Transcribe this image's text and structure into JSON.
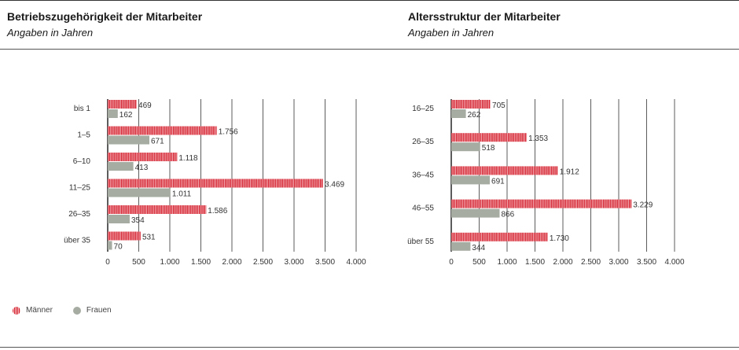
{
  "colors": {
    "men": "#d4202d",
    "men_light": "#f6c2c6",
    "women": "#a6aca2",
    "grid": "#333333"
  },
  "legend": {
    "men": "Männer",
    "women": "Frauen"
  },
  "chart_data": [
    {
      "type": "bar",
      "orientation": "horizontal",
      "title": "Betriebszugehörigkeit der Mitarbeiter",
      "subtitle": "Angaben in Jahren",
      "categories": [
        "bis 1",
        "1–5",
        "6–10",
        "11–25",
        "26–35",
        "über 35"
      ],
      "series": [
        {
          "name": "Männer",
          "values": [
            469,
            1756,
            1118,
            3469,
            1586,
            531
          ],
          "labels": [
            "469",
            "1.756",
            "1.118",
            "3.469",
            "1.586",
            "531"
          ]
        },
        {
          "name": "Frauen",
          "values": [
            162,
            671,
            413,
            1011,
            354,
            70
          ],
          "labels": [
            "162",
            "671",
            "413",
            "1.011",
            "354",
            "70"
          ]
        }
      ],
      "xlim": [
        0,
        4000
      ],
      "ticks": [
        0,
        500,
        1000,
        1500,
        2000,
        2500,
        3000,
        3500,
        4000
      ],
      "tick_labels": [
        "0",
        "500",
        "1.000",
        "1.500",
        "2.000",
        "2.500",
        "3.000",
        "3.500",
        "4.000"
      ],
      "grid": true,
      "legend_position": "bottom-left"
    },
    {
      "type": "bar",
      "orientation": "horizontal",
      "title": "Altersstruktur der Mitarbeiter",
      "subtitle": "Angaben in Jahren",
      "categories": [
        "16–25",
        "26–35",
        "36–45",
        "46–55",
        "über 55"
      ],
      "series": [
        {
          "name": "Männer",
          "values": [
            705,
            1353,
            1912,
            3229,
            1730
          ],
          "labels": [
            "705",
            "1.353",
            "1.912",
            "3.229",
            "1.730"
          ]
        },
        {
          "name": "Frauen",
          "values": [
            262,
            518,
            691,
            866,
            344
          ],
          "labels": [
            "262",
            "518",
            "691",
            "866",
            "344"
          ]
        }
      ],
      "xlim": [
        0,
        4000
      ],
      "ticks": [
        0,
        500,
        1000,
        1500,
        2000,
        2500,
        3000,
        3500,
        4000
      ],
      "tick_labels": [
        "0",
        "500",
        "1.000",
        "1.500",
        "2.000",
        "2.500",
        "3.000",
        "3.500",
        "4.000"
      ],
      "grid": true,
      "legend_position": "bottom-left"
    }
  ]
}
